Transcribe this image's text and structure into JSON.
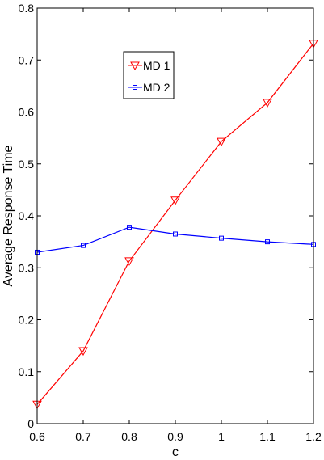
{
  "chart_data": {
    "type": "line",
    "title": "",
    "xlabel": "c",
    "ylabel": "Average Response Time",
    "xlim": [
      0.6,
      1.2
    ],
    "ylim": [
      0,
      0.8
    ],
    "x": [
      0.6,
      0.7,
      0.8,
      0.9,
      1.0,
      1.1,
      1.2
    ],
    "x_tick_labels": [
      "0.6",
      "0.7",
      "0.8",
      "0.9",
      "1",
      "1.1",
      "1.2"
    ],
    "y_ticks": [
      0,
      0.1,
      0.2,
      0.3,
      0.4,
      0.5,
      0.6,
      0.7,
      0.8
    ],
    "y_tick_labels": [
      "0",
      "0.1",
      "0.2",
      "0.3",
      "0.4",
      "0.5",
      "0.6",
      "0.7",
      "0.8"
    ],
    "series": [
      {
        "name": "MD 1",
        "values": [
          0.037,
          0.14,
          0.313,
          0.43,
          0.543,
          0.618,
          0.732
        ],
        "color": "#ff0000",
        "marker": "triangle-down"
      },
      {
        "name": "MD 2",
        "values": [
          0.33,
          0.343,
          0.378,
          0.365,
          0.357,
          0.35,
          0.345
        ],
        "color": "#0000ff",
        "marker": "square"
      }
    ],
    "legend": "upper-middle",
    "grid": false
  }
}
